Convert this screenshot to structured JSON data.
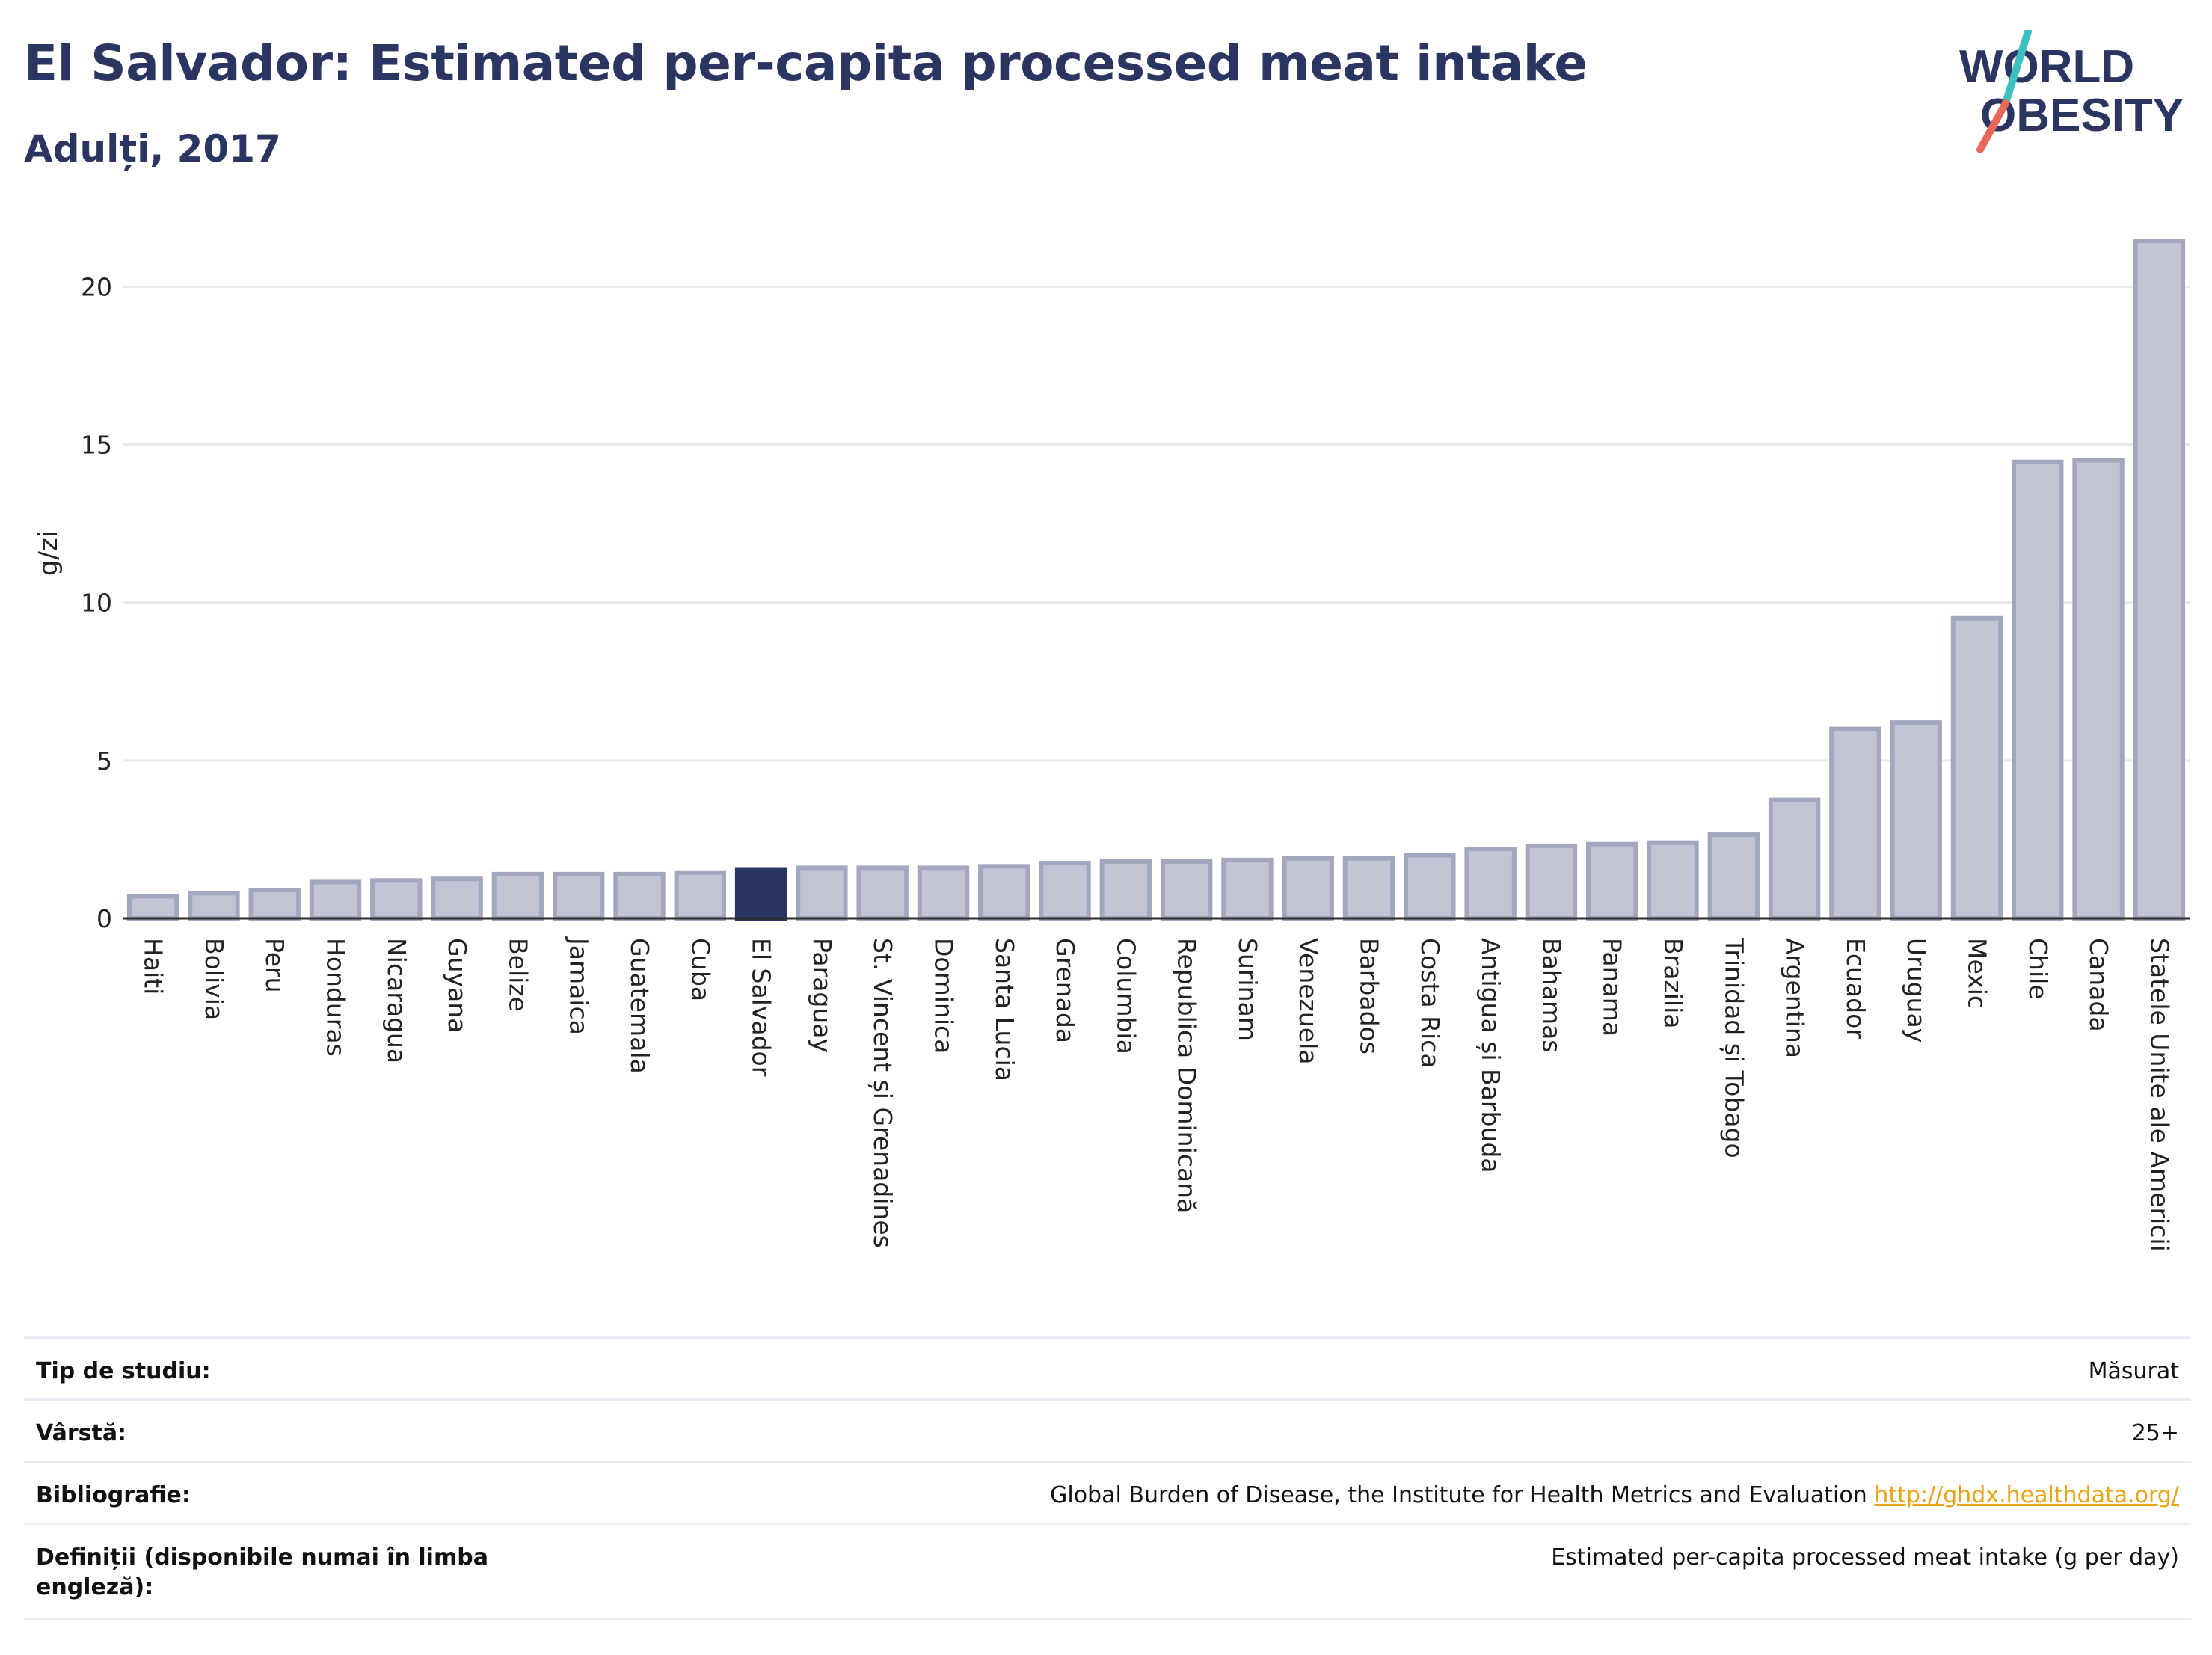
{
  "header": {
    "title": "El Salvador: Estimated per-capita processed meat intake",
    "subtitle": "Adulți, 2017"
  },
  "logo": {
    "line1": "WORLD",
    "line2": "OBESITY",
    "accent_colors": [
      "#3cc0c0",
      "#e8685a"
    ]
  },
  "chart_data": {
    "type": "bar",
    "ylabel": "g/zi",
    "ylim": [
      0,
      21.5
    ],
    "yticks": [
      0,
      5,
      10,
      15,
      20
    ],
    "grid": true,
    "highlight": "El Salvador",
    "bar_color": "#c1c4d3",
    "bar_edge_color": "#a2a7bd",
    "highlight_color": "#2b3561",
    "categories": [
      "Haiti",
      "Bolivia",
      "Peru",
      "Honduras",
      "Nicaragua",
      "Guyana",
      "Belize",
      "Jamaica",
      "Guatemala",
      "Cuba",
      "El Salvador",
      "Paraguay",
      "St. Vincent și Grenadines",
      "Dominica",
      "Santa Lucia",
      "Grenada",
      "Columbia",
      "Republica Dominicană",
      "Surinam",
      "Venezuela",
      "Barbados",
      "Costa Rica",
      "Antigua și Barbuda",
      "Bahamas",
      "Panama",
      "Brazilia",
      "Trinidad și Tobago",
      "Argentina",
      "Ecuador",
      "Uruguay",
      "Mexic",
      "Chile",
      "Canada",
      "Statele Unite ale Americii"
    ],
    "values": [
      0.7,
      0.8,
      0.9,
      1.15,
      1.2,
      1.25,
      1.4,
      1.4,
      1.4,
      1.45,
      1.55,
      1.6,
      1.6,
      1.6,
      1.65,
      1.75,
      1.8,
      1.8,
      1.85,
      1.9,
      1.9,
      2.0,
      2.2,
      2.3,
      2.35,
      2.4,
      2.65,
      3.75,
      6.0,
      6.2,
      9.5,
      14.45,
      14.5,
      21.45
    ]
  },
  "meta": [
    {
      "label": "Tip de studiu:",
      "value": "Măsurat"
    },
    {
      "label": "Vârstă:",
      "value": "25+"
    },
    {
      "label": "Bibliografie:",
      "value": "Global Burden of Disease, the Institute for Health Metrics and Evaluation",
      "link": "http://ghdx.healthdata.org/"
    },
    {
      "label": "Definiții (disponibile numai în limba engleză):",
      "value": "Estimated per-capita processed meat intake (g per day)"
    }
  ]
}
